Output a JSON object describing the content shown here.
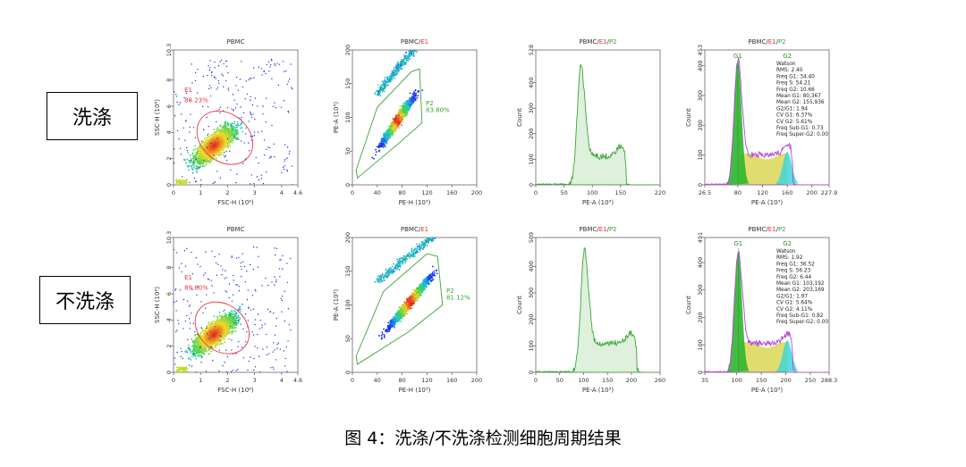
{
  "caption": "图 4：洗涤/不洗涤检测细胞周期结果",
  "row_labels": [
    "洗涤",
    "不洗涤"
  ],
  "colors": {
    "gate_red": "#e8363d",
    "gate_green": "#3aa53a",
    "hist_line": "#3aa53a",
    "hist_fill": "#dff0dc",
    "g1": "#2fb52f",
    "s": "#d7d44a",
    "g2": "#3fd6d6",
    "fit": "#b44ad6"
  },
  "chart_data": [
    {
      "id": "r0p0",
      "type": "scatter",
      "title": [
        "PBMC"
      ],
      "xlabel": "FSC-H (10⁶)",
      "ylabel": "SSC-H (10⁶)",
      "xticks": [
        "0",
        "1",
        "2",
        "3",
        "4",
        "4.6"
      ],
      "xtick_vals": [
        0,
        1,
        2,
        3,
        4,
        4.6
      ],
      "xlim": [
        0,
        4.6
      ],
      "yticks": [
        "0",
        "2",
        "4",
        "6",
        "8",
        "10.3"
      ],
      "ytick_vals": [
        0,
        2,
        4,
        6,
        8,
        10.3
      ],
      "ylim": [
        0,
        10.3
      ],
      "gate": {
        "shape": "ellipse",
        "name": "E1",
        "percent": "88.23%",
        "center": [
          1.9,
          3.6
        ],
        "radii": [
          1.5,
          3.3
        ],
        "angle": -40
      },
      "cloud": {
        "center": [
          1.5,
          3.0
        ]
      }
    },
    {
      "id": "r0p1",
      "type": "scatter",
      "title": [
        "PBMC",
        "/",
        "E1"
      ],
      "xlabel": "PE-H (10³)",
      "ylabel": "PE-A (10³)",
      "xticks": [
        "0",
        "40",
        "80",
        "120",
        "160",
        "200"
      ],
      "xtick_vals": [
        0,
        40,
        80,
        120,
        160,
        200
      ],
      "xlim": [
        0,
        200
      ],
      "yticks": [
        "0",
        "50",
        "100",
        "150",
        "200"
      ],
      "ytick_vals": [
        0,
        50,
        100,
        150,
        200
      ],
      "ylim": [
        0,
        200
      ],
      "gate": {
        "shape": "polygon",
        "name": "P2",
        "percent": "83.80%",
        "points": [
          [
            8,
            10
          ],
          [
            75,
            62
          ],
          [
            112,
            92
          ],
          [
            108,
            172
          ],
          [
            95,
            168
          ],
          [
            40,
            115
          ],
          [
            6,
            22
          ]
        ]
      },
      "cloud": {
        "center": [
          75,
          95
        ]
      }
    },
    {
      "id": "r0p2",
      "type": "histogram",
      "title": [
        "PBMC",
        "/",
        "E1",
        "/",
        "P2"
      ],
      "xlabel": "PE-A (10³)",
      "ylabel": "Count",
      "xticks": [
        "0",
        "50",
        "100",
        "150",
        "220"
      ],
      "xtick_vals": [
        0,
        50,
        100,
        150,
        220
      ],
      "xlim": [
        0,
        220
      ],
      "yticks": [
        "0",
        "100",
        "200",
        "300",
        "400",
        "528"
      ],
      "ytick_vals": [
        0,
        100,
        200,
        300,
        400,
        528
      ],
      "ylim": [
        0,
        528
      ],
      "peak": {
        "x": 80,
        "height": 465
      },
      "g2": {
        "x": 150
      }
    },
    {
      "id": "r0p3",
      "type": "histogram-fit",
      "title": [
        "PBMC",
        "/",
        "E1",
        "/",
        "P2"
      ],
      "xlabel": "PE-A (10³)",
      "ylabel": "Count",
      "xticks": [
        "26.5",
        "80",
        "120",
        "160",
        "200",
        "227.9"
      ],
      "xtick_vals": [
        26.5,
        80,
        120,
        160,
        200,
        227.9
      ],
      "xlim": [
        26.5,
        227.9
      ],
      "yticks": [
        "0",
        "100",
        "200",
        "300",
        "400",
        "453"
      ],
      "ytick_vals": [
        0,
        100,
        200,
        300,
        400,
        453
      ],
      "ylim": [
        0,
        453
      ],
      "peak": {
        "x": 80,
        "height": 420
      },
      "g2": {
        "x": 160
      },
      "stats": [
        "Watson",
        "RMS: 2.40",
        "Freq G1: 34.40",
        "Freq S: 54.21",
        "Freq G2: 10.66",
        "Mean G1: 80,367",
        "Mean G2: 155,936",
        "G2/G1: 1.94",
        "CV G1: 6.37%",
        "CV G2: 5.61%",
        "Freq Sub-G1: 0.73",
        "Freq Super-G2: 0.00"
      ],
      "peak_labels": [
        "G1",
        "G2"
      ]
    },
    {
      "id": "r1p0",
      "type": "scatter",
      "title": [
        "PBMC"
      ],
      "xlabel": "FSC-H (10⁶)",
      "ylabel": "SSC-H (10⁶)",
      "xticks": [
        "0",
        "1",
        "2",
        "3",
        "4",
        "4.6"
      ],
      "xtick_vals": [
        0,
        1,
        2,
        3,
        4,
        4.6
      ],
      "xlim": [
        0,
        4.6
      ],
      "yticks": [
        "0",
        "2",
        "4",
        "6",
        "8",
        "10.3"
      ],
      "ytick_vals": [
        0,
        2,
        4,
        6,
        8,
        10.3
      ],
      "ylim": [
        0,
        10.3
      ],
      "gate": {
        "shape": "ellipse",
        "name": "E1",
        "percent": "89.80%",
        "center": [
          1.8,
          3.4
        ],
        "radii": [
          1.45,
          3.2
        ],
        "angle": -40
      },
      "cloud": {
        "center": [
          1.5,
          2.9
        ]
      }
    },
    {
      "id": "r1p1",
      "type": "scatter",
      "title": [
        "PBMC",
        "/",
        "E1"
      ],
      "xlabel": "PE-H (10³)",
      "ylabel": "PE-A (10³)",
      "xticks": [
        "0",
        "40",
        "80",
        "120",
        "160",
        "200"
      ],
      "xtick_vals": [
        0,
        40,
        80,
        120,
        160,
        200
      ],
      "xlim": [
        0,
        200
      ],
      "yticks": [
        "0",
        "50",
        "100",
        "150",
        "200"
      ],
      "ytick_vals": [
        0,
        50,
        100,
        150,
        200
      ],
      "ylim": [
        0,
        200
      ],
      "gate": {
        "shape": "polygon",
        "name": "P2",
        "percent": "81.12%",
        "points": [
          [
            8,
            12
          ],
          [
            90,
            60
          ],
          [
            145,
            100
          ],
          [
            137,
            172
          ],
          [
            120,
            176
          ],
          [
            50,
            120
          ],
          [
            6,
            24
          ]
        ]
      },
      "cloud": {
        "center": [
          95,
          105
        ]
      }
    },
    {
      "id": "r1p2",
      "type": "histogram",
      "title": [
        "PBMC",
        "/",
        "E1",
        "/",
        "P2"
      ],
      "xlabel": "PE-A (10³)",
      "ylabel": "Count",
      "xticks": [
        "0",
        "50",
        "100",
        "150",
        "200",
        "260"
      ],
      "xtick_vals": [
        0,
        50,
        100,
        150,
        200,
        260
      ],
      "xlim": [
        0,
        260
      ],
      "yticks": [
        "0",
        "100",
        "200",
        "300",
        "400",
        "509"
      ],
      "ytick_vals": [
        0,
        100,
        200,
        300,
        400,
        509
      ],
      "ylim": [
        0,
        509
      ],
      "peak": {
        "x": 102,
        "height": 460
      },
      "g2": {
        "x": 200
      }
    },
    {
      "id": "r1p3",
      "type": "histogram-fit",
      "title": [
        "PBMC",
        "/",
        "E1",
        "/",
        "P2"
      ],
      "xlabel": "PE-A (10³)",
      "ylabel": "Count",
      "xticks": [
        "35",
        "100",
        "150",
        "200",
        "250",
        "288.3"
      ],
      "xtick_vals": [
        35,
        100,
        150,
        200,
        250,
        288.3
      ],
      "xlim": [
        35,
        288.3
      ],
      "yticks": [
        "0",
        "100",
        "200",
        "300",
        "400",
        "491"
      ],
      "ytick_vals": [
        0,
        100,
        200,
        300,
        400,
        491
      ],
      "ylim": [
        0,
        491
      ],
      "peak": {
        "x": 103,
        "height": 440
      },
      "g2": {
        "x": 203
      },
      "stats": [
        "Watson",
        "RMS: 1.92",
        "Freq G1: 36.52",
        "Freq S: 56.23",
        "Freq G2: 6.44",
        "Mean G1: 103,192",
        "Mean G2: 203,169",
        "G2/G1: 1.97",
        "CV G1: 5.64%",
        "CV G2: 4.11%",
        "Freq Sub-G1: 0.82",
        "Freq Super-G2: 0.00"
      ],
      "peak_labels": [
        "G1",
        "G2"
      ]
    }
  ]
}
